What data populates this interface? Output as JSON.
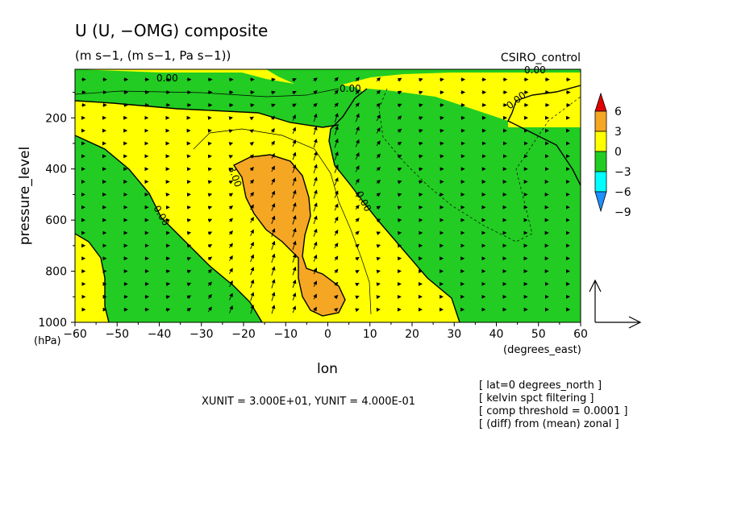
{
  "chart_data": {
    "type": "contour",
    "title": "U (U, −OMG) composite",
    "subtitle": "(m s−1, (m s−1, Pa s−1))",
    "dataset": "CSIRO_control",
    "xlabel": "lon",
    "xunits": "(degrees_east)",
    "ylabel": "pressure_level",
    "yunits": "(hPa)",
    "xlim": [
      -60,
      60
    ],
    "ylim": [
      1000,
      10
    ],
    "x_ticks": [
      "−60",
      "−50",
      "−40",
      "−30",
      "−20",
      "−10",
      "0",
      "10",
      "20",
      "30",
      "40",
      "50",
      "60"
    ],
    "y_ticks": [
      "200",
      "400",
      "600",
      "800",
      "1000"
    ],
    "colorbar": {
      "labels": [
        "6",
        "3",
        "0",
        "−3",
        "−6",
        "−9"
      ],
      "colors": [
        "#e00000",
        "#f5a623",
        "#ffff00",
        "#22cc22",
        "#00ffff",
        "#1e90ff"
      ]
    },
    "contour_labels": [
      "0.00",
      "0.00",
      "0.00",
      "0.00",
      "0.00",
      "0.00",
      "3.00"
    ],
    "unit_vector_text": "XUNIT = 3.000E+01, YUNIT = 4.000E-01",
    "notes": [
      "[ lat=0 degrees_north ]",
      "[ kelvin spct filtering ]",
      "[ comp threshold = 0.0001 ]",
      "[ (diff) from (mean) zonal ]"
    ]
  }
}
